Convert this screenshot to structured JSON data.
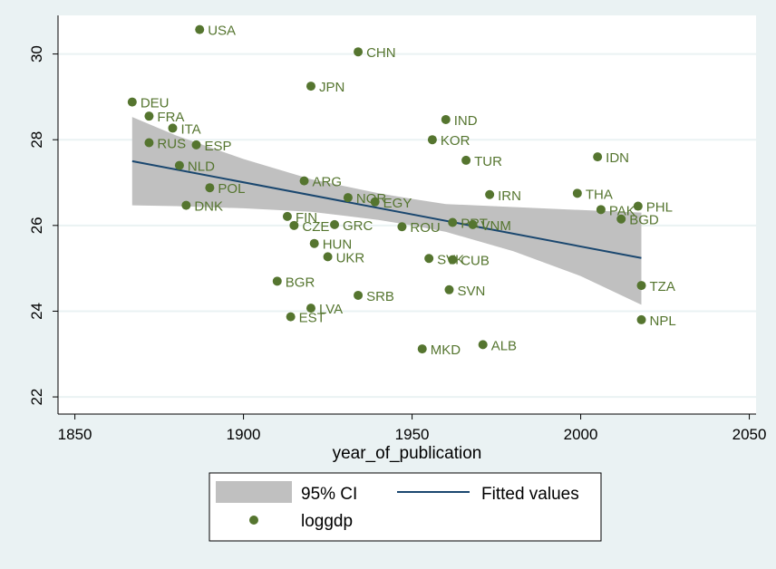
{
  "chart_data": {
    "type": "scatter",
    "xlabel": "year_of_publication",
    "ylabel": "",
    "xlim": [
      1845,
      2052
    ],
    "ylim": [
      21.6,
      30.9
    ],
    "x_ticks": [
      1850,
      1900,
      1950,
      2000,
      2050
    ],
    "y_ticks": [
      22,
      24,
      26,
      28,
      30
    ],
    "grid": true,
    "legend_position": "bottom",
    "legend": {
      "ci_label": "95% CI",
      "fit_label": "Fitted values",
      "points_label": "loggdp"
    },
    "colors": {
      "background": "#eaf2f3",
      "plot_area": "#ffffff",
      "gridline": "#eaf2f3",
      "ci_band": "#c0c0c0",
      "fit_line": "#1a476f",
      "points": "#55752f",
      "point_labels": "#55752f"
    },
    "fitted_line": {
      "x": [
        1867,
        2018
      ],
      "y": [
        27.5,
        25.24
      ]
    },
    "ci_band": {
      "x": [
        1867,
        1880,
        1900,
        1920,
        1940,
        1950,
        1960,
        1980,
        2000,
        2018
      ],
      "upper": [
        28.53,
        28.1,
        27.55,
        27.08,
        26.75,
        26.62,
        26.5,
        26.43,
        26.36,
        26.3
      ],
      "lower": [
        26.47,
        26.45,
        26.4,
        26.32,
        26.13,
        26.0,
        25.85,
        25.4,
        24.82,
        24.15
      ]
    },
    "series": [
      {
        "name": "loggdp",
        "points": [
          {
            "label": "USA",
            "x": 1887,
            "y": 30.57
          },
          {
            "label": "CHN",
            "x": 1934,
            "y": 30.05
          },
          {
            "label": "JPN",
            "x": 1920,
            "y": 29.25
          },
          {
            "label": "DEU",
            "x": 1867,
            "y": 28.88
          },
          {
            "label": "FRA",
            "x": 1872,
            "y": 28.55
          },
          {
            "label": "ITA",
            "x": 1879,
            "y": 28.27
          },
          {
            "label": "RUS",
            "x": 1872,
            "y": 27.93
          },
          {
            "label": "ESP",
            "x": 1886,
            "y": 27.88
          },
          {
            "label": "NLD",
            "x": 1881,
            "y": 27.4
          },
          {
            "label": "POL",
            "x": 1890,
            "y": 26.88
          },
          {
            "label": "DNK",
            "x": 1883,
            "y": 26.47
          },
          {
            "label": "ARG",
            "x": 1918,
            "y": 27.04
          },
          {
            "label": "NOR",
            "x": 1931,
            "y": 26.65
          },
          {
            "label": "EGY",
            "x": 1939,
            "y": 26.55
          },
          {
            "label": "FIN",
            "x": 1913,
            "y": 26.21
          },
          {
            "label": "CZE",
            "x": 1915,
            "y": 26.0
          },
          {
            "label": "GRC",
            "x": 1927,
            "y": 26.02
          },
          {
            "label": "ROU",
            "x": 1947,
            "y": 25.97
          },
          {
            "label": "HUN",
            "x": 1921,
            "y": 25.58
          },
          {
            "label": "UKR",
            "x": 1925,
            "y": 25.27
          },
          {
            "label": "BGR",
            "x": 1910,
            "y": 24.7
          },
          {
            "label": "LVA",
            "x": 1920,
            "y": 24.07
          },
          {
            "label": "EST",
            "x": 1914,
            "y": 23.87
          },
          {
            "label": "SRB",
            "x": 1934,
            "y": 24.37
          },
          {
            "label": "IND",
            "x": 1960,
            "y": 28.47
          },
          {
            "label": "KOR",
            "x": 1956,
            "y": 28.0
          },
          {
            "label": "TUR",
            "x": 1966,
            "y": 27.52
          },
          {
            "label": "IRN",
            "x": 1973,
            "y": 26.72
          },
          {
            "label": "PRT",
            "x": 1962,
            "y": 26.07
          },
          {
            "label": "VNM",
            "x": 1968,
            "y": 26.02
          },
          {
            "label": "SVK",
            "x": 1955,
            "y": 25.23
          },
          {
            "label": "CUB",
            "x": 1962,
            "y": 25.2
          },
          {
            "label": "SVN",
            "x": 1961,
            "y": 24.5
          },
          {
            "label": "MKD",
            "x": 1953,
            "y": 23.12
          },
          {
            "label": "ALB",
            "x": 1971,
            "y": 23.22
          },
          {
            "label": "IDN",
            "x": 2005,
            "y": 27.6
          },
          {
            "label": "THA",
            "x": 1999,
            "y": 26.75
          },
          {
            "label": "PAK",
            "x": 2006,
            "y": 26.37
          },
          {
            "label": "PHL",
            "x": 2017,
            "y": 26.45
          },
          {
            "label": "BGD",
            "x": 2012,
            "y": 26.15
          },
          {
            "label": "TZA",
            "x": 2018,
            "y": 24.6
          },
          {
            "label": "NPL",
            "x": 2018,
            "y": 23.8
          }
        ]
      }
    ]
  }
}
